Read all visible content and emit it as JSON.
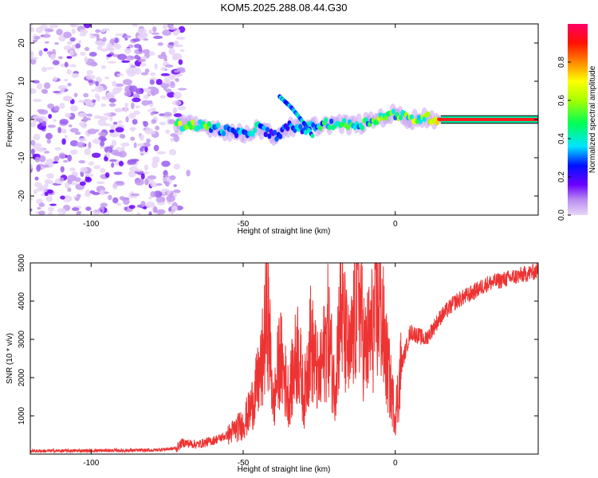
{
  "title": "KOM5.2025.288.08.44.G30",
  "chart_data": [
    {
      "type": "heatmap",
      "name": "spectrogram",
      "xlabel": "Height of straight line (km)",
      "ylabel": "Frequency (Hz)",
      "xlim": [
        -120,
        47
      ],
      "ylim": [
        -25,
        25
      ],
      "xticks": [
        -100,
        -50,
        0
      ],
      "yticks": [
        -20,
        -10,
        0,
        10,
        20
      ],
      "colorbar": {
        "label": "Normalized spectral amplitude",
        "range": [
          0,
          1
        ],
        "ticks": [
          "0.0",
          "0.2",
          "0.4",
          "0.6",
          "0.8"
        ],
        "tick_values": [
          0,
          0.2,
          0.4,
          0.6,
          0.8
        ]
      },
      "ridge": [
        {
          "x": -72,
          "freq": -1.5,
          "amp": 0.6
        },
        {
          "x": -66,
          "freq": -1.5,
          "amp": 0.7
        },
        {
          "x": -60,
          "freq": -2.0,
          "amp": 0.45
        },
        {
          "x": -55,
          "freq": -3.0,
          "amp": 0.4
        },
        {
          "x": -50,
          "freq": -4.0,
          "amp": 0.35
        },
        {
          "x": -45,
          "freq": -2.0,
          "amp": 0.45
        },
        {
          "x": -40,
          "freq": -4.5,
          "amp": 0.3
        },
        {
          "x": -35,
          "freq": -2.0,
          "amp": 0.4
        },
        {
          "x": -30,
          "freq": -2.5,
          "amp": 0.35
        },
        {
          "x": -25,
          "freq": -1.5,
          "amp": 0.5
        },
        {
          "x": -20,
          "freq": -1.0,
          "amp": 0.55
        },
        {
          "x": -15,
          "freq": -1.5,
          "amp": 0.6
        },
        {
          "x": -10,
          "freq": -1.0,
          "amp": 0.55
        },
        {
          "x": -5,
          "freq": 0.5,
          "amp": 0.6
        },
        {
          "x": 0,
          "freq": 1.5,
          "amp": 0.6
        },
        {
          "x": 5,
          "freq": 0.0,
          "amp": 0.65
        },
        {
          "x": 10,
          "freq": 0.5,
          "amp": 0.7
        },
        {
          "x": 15,
          "freq": 0.0,
          "amp": 0.9
        },
        {
          "x": 20,
          "freq": 0.0,
          "amp": 1.0
        },
        {
          "x": 30,
          "freq": 0.0,
          "amp": 1.0
        },
        {
          "x": 40,
          "freq": 0.0,
          "amp": 1.0
        },
        {
          "x": 47,
          "freq": 0.0,
          "amp": 1.0
        }
      ],
      "branch": [
        {
          "x": -38,
          "freq": 6.0
        },
        {
          "x": -34,
          "freq": 3.0
        },
        {
          "x": -30,
          "freq": -1.0
        },
        {
          "x": -27,
          "freq": -4.5
        }
      ],
      "noise_region_x": [
        -120,
        -70
      ]
    },
    {
      "type": "line",
      "name": "snr",
      "xlabel": "Height of straight line (km)",
      "ylabel": "SNR (10 * v/v)",
      "xlim": [
        -120,
        47
      ],
      "ylim": [
        0,
        5000
      ],
      "xticks": [
        -100,
        -50,
        0
      ],
      "yticks": [
        1000,
        2000,
        3000,
        4000,
        5000
      ],
      "color": "#ee3333",
      "series": [
        {
          "x": -120,
          "y": 80
        },
        {
          "x": -100,
          "y": 90
        },
        {
          "x": -80,
          "y": 100
        },
        {
          "x": -72,
          "y": 150
        },
        {
          "x": -70,
          "y": 300
        },
        {
          "x": -65,
          "y": 250
        },
        {
          "x": -60,
          "y": 350
        },
        {
          "x": -55,
          "y": 500
        },
        {
          "x": -50,
          "y": 800
        },
        {
          "x": -48,
          "y": 1100
        },
        {
          "x": -46,
          "y": 1600
        },
        {
          "x": -44,
          "y": 2200
        },
        {
          "x": -42,
          "y": 3850
        },
        {
          "x": -40,
          "y": 1200
        },
        {
          "x": -38,
          "y": 2600
        },
        {
          "x": -35,
          "y": 1500
        },
        {
          "x": -32,
          "y": 2800
        },
        {
          "x": -30,
          "y": 1400
        },
        {
          "x": -28,
          "y": 3000
        },
        {
          "x": -25,
          "y": 1900
        },
        {
          "x": -22,
          "y": 3300
        },
        {
          "x": -20,
          "y": 1700
        },
        {
          "x": -18,
          "y": 3800
        },
        {
          "x": -15,
          "y": 2400
        },
        {
          "x": -12,
          "y": 4380
        },
        {
          "x": -10,
          "y": 2600
        },
        {
          "x": -5,
          "y": 4000
        },
        {
          "x": -3,
          "y": 2500
        },
        {
          "x": 0,
          "y": 1000
        },
        {
          "x": 2,
          "y": 2300
        },
        {
          "x": 5,
          "y": 3200
        },
        {
          "x": 10,
          "y": 3000
        },
        {
          "x": 15,
          "y": 3600
        },
        {
          "x": 20,
          "y": 4000
        },
        {
          "x": 25,
          "y": 4200
        },
        {
          "x": 30,
          "y": 4450
        },
        {
          "x": 35,
          "y": 4550
        },
        {
          "x": 40,
          "y": 4650
        },
        {
          "x": 45,
          "y": 4750
        },
        {
          "x": 47,
          "y": 4800
        }
      ]
    }
  ]
}
